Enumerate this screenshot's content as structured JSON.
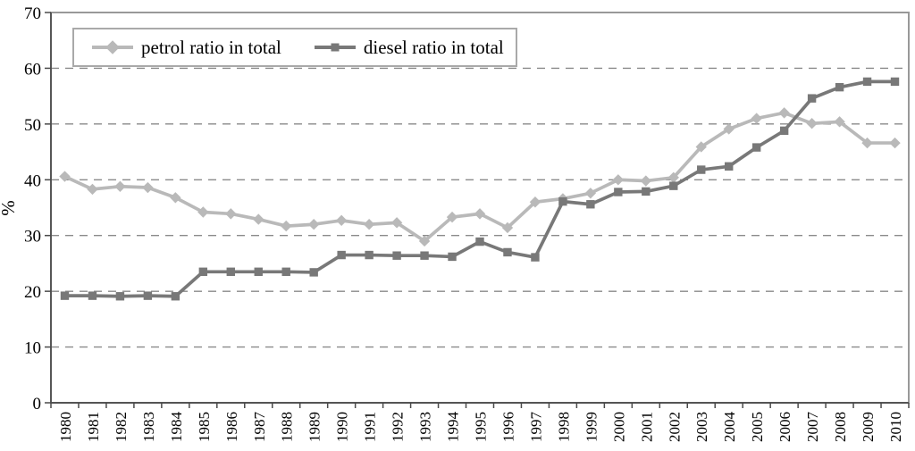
{
  "chart": {
    "background_color": "#ffffff",
    "frame_color": "#999999",
    "axis_color": "#4a4a4a",
    "gridline_color": "#8a8a8a",
    "text_color": "#000000",
    "legend_border_color": "#a9a9a9"
  },
  "chart_data": {
    "type": "line",
    "title": "",
    "xlabel": "",
    "ylabel": "%",
    "ylim": [
      0,
      70
    ],
    "yticks": [
      0,
      10,
      20,
      30,
      40,
      50,
      60,
      70
    ],
    "grid": "horizontal-dashed",
    "legend_position": "top-left-inside",
    "categories": [
      "1980",
      "1981",
      "1982",
      "1983",
      "1984",
      "1985",
      "1986",
      "1987",
      "1988",
      "1989",
      "1990",
      "1991",
      "1992",
      "1993",
      "1994",
      "1995",
      "1996",
      "1997",
      "1998",
      "1999",
      "2000",
      "2001",
      "2002",
      "2003",
      "2004",
      "2005",
      "2006",
      "2007",
      "2008",
      "2009",
      "2010"
    ],
    "series": [
      {
        "name": "petrol ratio in total",
        "marker": "diamond",
        "color": "#b9b9b9",
        "values": [
          40.6,
          38.3,
          38.8,
          38.6,
          36.8,
          34.2,
          33.9,
          32.9,
          31.7,
          32.0,
          32.7,
          32.0,
          32.3,
          29.0,
          33.3,
          33.9,
          31.4,
          36.0,
          36.6,
          37.6,
          40.0,
          39.8,
          40.4,
          45.9,
          49.1,
          51.0,
          52.0,
          50.1,
          50.4,
          46.6,
          46.6
        ]
      },
      {
        "name": "diesel ratio in total",
        "marker": "square",
        "color": "#787878",
        "values": [
          19.2,
          19.2,
          19.1,
          19.2,
          19.1,
          23.5,
          23.5,
          23.5,
          23.5,
          23.4,
          26.5,
          26.5,
          26.4,
          26.4,
          26.2,
          28.9,
          27.0,
          26.1,
          36.1,
          35.6,
          37.8,
          37.9,
          38.9,
          41.8,
          42.4,
          45.8,
          48.8,
          54.6,
          56.6,
          57.6,
          57.6
        ]
      }
    ]
  }
}
